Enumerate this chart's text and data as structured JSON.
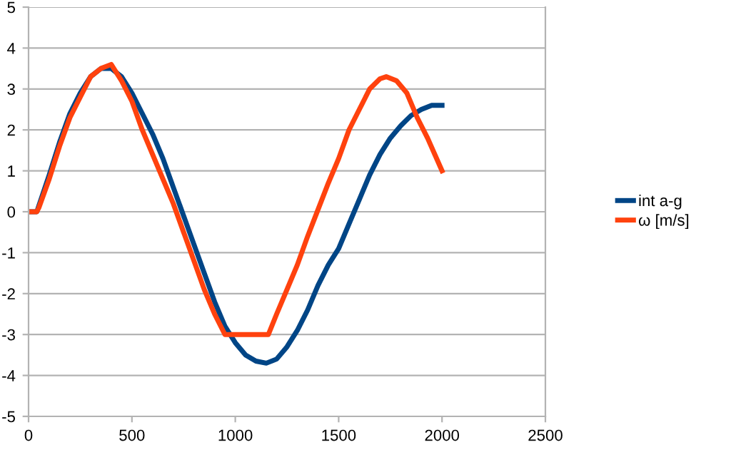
{
  "chart_data": {
    "type": "line",
    "xlim": [
      0,
      2500
    ],
    "xticks": [
      0,
      500,
      1000,
      1500,
      2000,
      2500
    ],
    "ylim": [
      -5,
      5
    ],
    "yticks": [
      -5,
      -4,
      -3,
      -2,
      -1,
      0,
      1,
      2,
      3,
      4,
      5
    ],
    "grid": "y",
    "legend": "right",
    "series": [
      {
        "name": "int a-g",
        "color": "#004586",
        "x": [
          0,
          40,
          100,
          150,
          200,
          250,
          300,
          350,
          400,
          450,
          500,
          550,
          600,
          650,
          700,
          750,
          800,
          850,
          900,
          950,
          1000,
          1050,
          1100,
          1150,
          1200,
          1250,
          1300,
          1350,
          1400,
          1450,
          1500,
          1550,
          1600,
          1650,
          1700,
          1750,
          1800,
          1850,
          1900,
          1950,
          2000
        ],
        "values": [
          0,
          0,
          0.9,
          1.7,
          2.4,
          2.9,
          3.3,
          3.5,
          3.5,
          3.3,
          2.9,
          2.4,
          1.9,
          1.3,
          0.6,
          -0.1,
          -0.8,
          -1.5,
          -2.2,
          -2.8,
          -3.2,
          -3.5,
          -3.65,
          -3.7,
          -3.6,
          -3.3,
          -2.9,
          -2.4,
          -1.8,
          -1.3,
          -0.9,
          -0.3,
          0.3,
          0.9,
          1.4,
          1.8,
          2.1,
          2.35,
          2.5,
          2.6,
          2.6
        ]
      },
      {
        "name": "ω [m/s]",
        "color": "#ff420e",
        "x": [
          0,
          40,
          50,
          100,
          150,
          200,
          250,
          300,
          350,
          400,
          450,
          500,
          550,
          600,
          650,
          700,
          750,
          800,
          850,
          900,
          950,
          1000,
          1050,
          1100,
          1160,
          1200,
          1250,
          1300,
          1350,
          1400,
          1450,
          1500,
          1550,
          1600,
          1650,
          1700,
          1730,
          1780,
          1830,
          1880,
          1930,
          2000
        ],
        "values": [
          0,
          0,
          0.1,
          0.8,
          1.6,
          2.3,
          2.8,
          3.3,
          3.5,
          3.6,
          3.2,
          2.7,
          2.0,
          1.4,
          0.8,
          0.2,
          -0.5,
          -1.2,
          -1.9,
          -2.5,
          -3.0,
          -3.0,
          -3.0,
          -3.0,
          -3.0,
          -2.5,
          -1.9,
          -1.3,
          -0.6,
          0.05,
          0.7,
          1.3,
          2.0,
          2.5,
          3.0,
          3.25,
          3.3,
          3.2,
          2.9,
          2.3,
          1.8,
          1.0
        ]
      }
    ]
  }
}
